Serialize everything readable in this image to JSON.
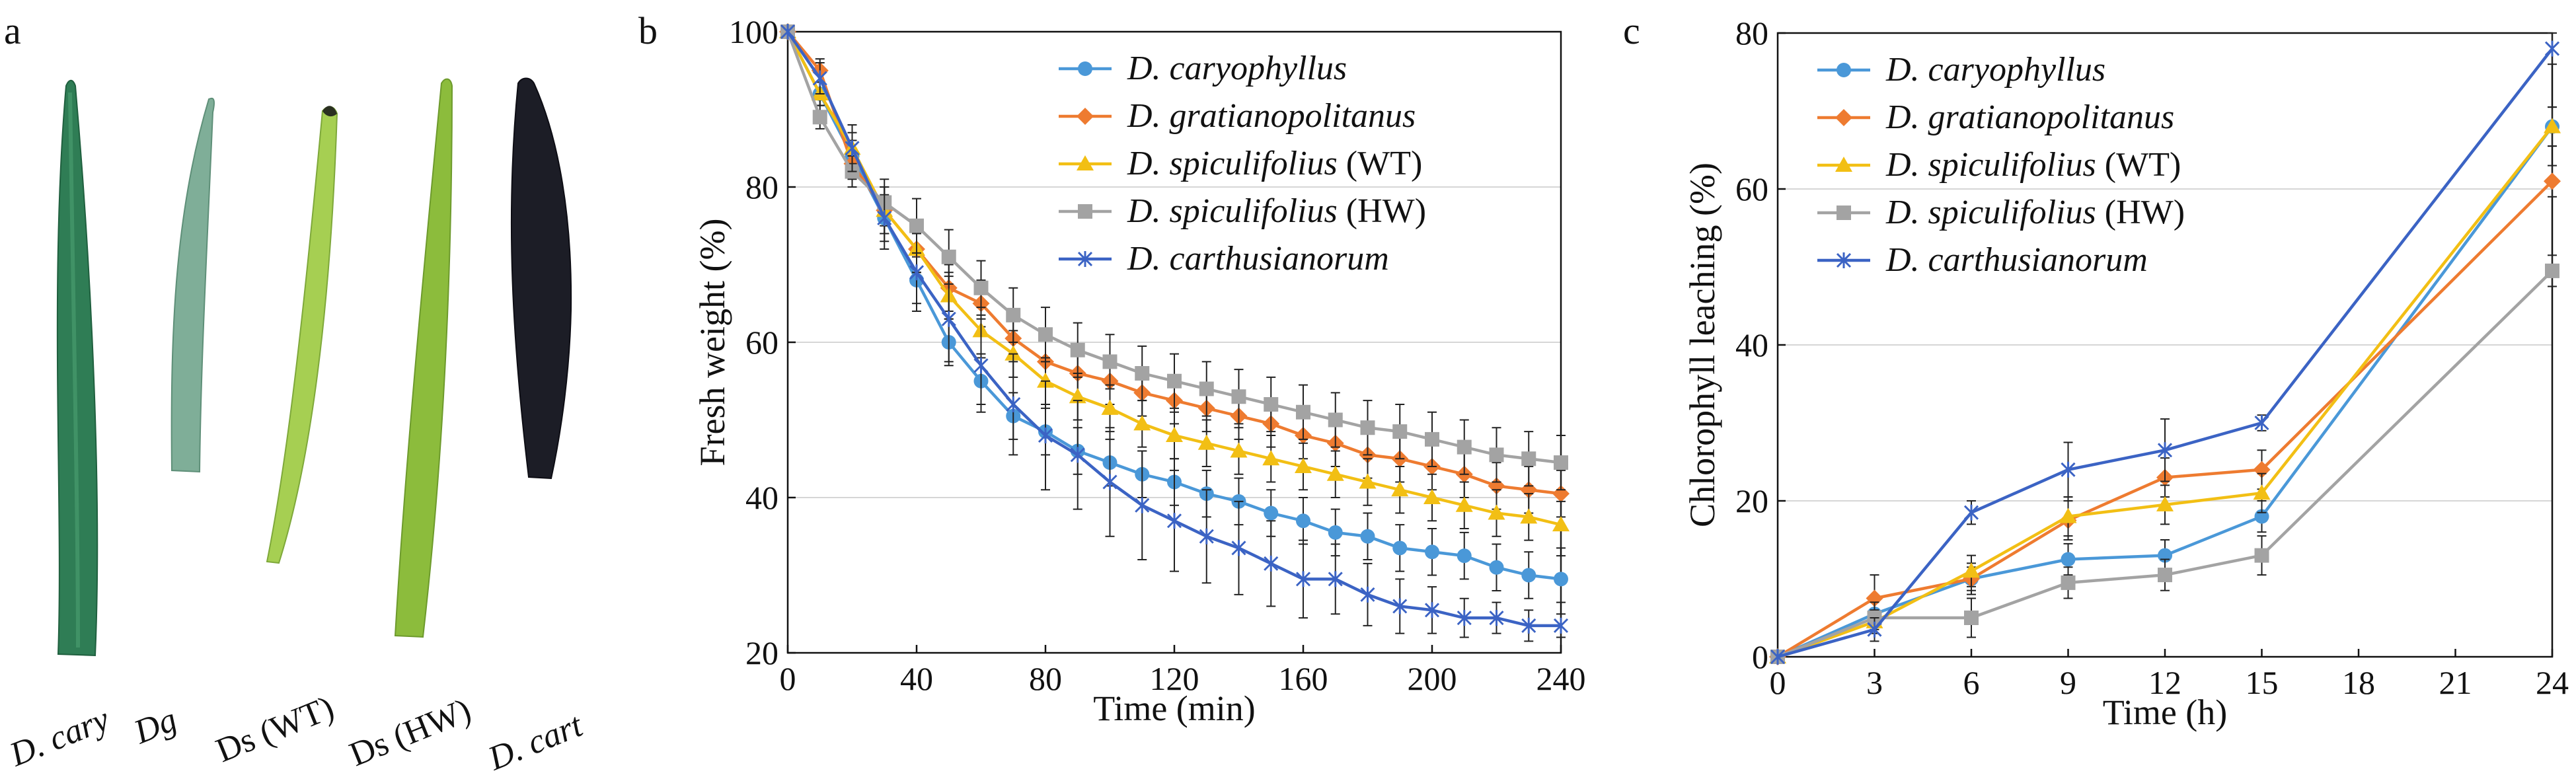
{
  "panel_labels": {
    "a": "a",
    "b": "b",
    "c": "c"
  },
  "leaves": [
    {
      "label": "D. cary",
      "color": "#2f7d55"
    },
    {
      "label": "Dg",
      "color": "#7fae98"
    },
    {
      "label": "Ds (WT)",
      "color": "#9cc84a"
    },
    {
      "label": "Ds (HW)",
      "color": "#8cbc3c"
    },
    {
      "label": "D. cart",
      "color": "#1c1d26"
    }
  ],
  "chart_data": [
    {
      "type": "line",
      "panel": "b",
      "xlabel": "Time (min)",
      "ylabel": "Fresh weight (%)",
      "xlim": [
        0,
        240
      ],
      "ylim": [
        20,
        100
      ],
      "xticks": [
        0,
        40,
        80,
        120,
        160,
        200,
        240
      ],
      "yticks": [
        20,
        40,
        60,
        80,
        100
      ],
      "grid": "horizontal",
      "legend": "top-right",
      "x": [
        0,
        10,
        20,
        30,
        40,
        50,
        60,
        70,
        80,
        90,
        100,
        110,
        120,
        130,
        140,
        150,
        160,
        170,
        180,
        190,
        200,
        210,
        220,
        230,
        240
      ],
      "series": [
        {
          "name": "D. caryophyllus",
          "italic": "D. caryophyllus",
          "suffix": "",
          "color": "#4a98d8",
          "marker": "circle",
          "values": [
            100,
            92,
            84,
            76,
            68,
            60,
            55,
            50.5,
            48.5,
            46,
            44.5,
            43,
            42,
            40.5,
            39.5,
            38,
            37,
            35.5,
            35,
            33.5,
            33,
            32.5,
            31,
            30,
            29.5
          ],
          "errors": [
            0,
            1.5,
            2,
            3,
            3,
            3,
            3,
            3,
            3,
            3,
            3,
            3,
            3,
            3,
            3,
            3,
            3,
            3,
            3,
            3,
            3,
            3,
            3,
            3,
            3
          ]
        },
        {
          "name": "D. gratianopolitanus",
          "italic": "D. gratianopolitanus",
          "suffix": "",
          "color": "#ee7b30",
          "marker": "diamond",
          "values": [
            100,
            95,
            83,
            77,
            72,
            67,
            65,
            60.5,
            57.5,
            56,
            55,
            53.5,
            52.5,
            51.5,
            50.5,
            49.5,
            48,
            47,
            45.5,
            45,
            44,
            43,
            41.5,
            41,
            40.5
          ],
          "errors": [
            0,
            1.5,
            2,
            3,
            3,
            3,
            3,
            3,
            3,
            3,
            3,
            3,
            3,
            3,
            3,
            3,
            3,
            3,
            3,
            3,
            3,
            3,
            3,
            3,
            3
          ]
        },
        {
          "name": "D. spiculifolius (WT)",
          "italic": "D. spiculifolius",
          "suffix": " (WT)",
          "color": "#f2bf14",
          "marker": "triangle",
          "values": [
            100,
            92,
            85,
            77,
            72,
            66,
            61.5,
            58.5,
            55,
            53,
            51.5,
            49.5,
            48,
            47,
            46,
            45,
            44,
            43,
            42,
            41,
            40,
            39,
            38,
            37.5,
            36.5
          ],
          "errors": [
            0,
            1.5,
            2,
            3,
            3,
            3,
            3,
            3,
            3,
            3,
            3,
            3,
            3,
            3,
            3,
            3,
            3,
            3,
            3,
            3,
            3,
            3,
            3,
            3,
            3
          ]
        },
        {
          "name": "D. spiculifolius (HW)",
          "italic": "D. spiculifolius",
          "suffix": " (HW)",
          "color": "#a3a3a3",
          "marker": "square",
          "values": [
            100,
            89,
            82,
            78,
            75,
            71,
            67,
            63.5,
            61,
            59,
            57.5,
            56,
            55,
            54,
            53,
            52,
            51,
            50,
            49,
            48.5,
            47.5,
            46.5,
            45.5,
            45,
            44.5
          ],
          "errors": [
            0,
            1.5,
            2,
            3,
            3.5,
            3.5,
            3.5,
            3.5,
            3.5,
            3.5,
            3.5,
            3.5,
            3.5,
            3.5,
            3.5,
            3.5,
            3.5,
            3.5,
            3.5,
            3.5,
            3.5,
            3.5,
            3.5,
            3.5,
            3.5
          ]
        },
        {
          "name": "D. carthusianorum",
          "italic": "D. carthusianorum",
          "suffix": "",
          "color": "#3b63c4",
          "marker": "asterisk",
          "values": [
            100,
            94,
            85,
            76,
            69,
            63,
            57,
            52,
            48,
            45.5,
            42,
            39,
            37,
            35,
            33.5,
            31.5,
            29.5,
            29.5,
            27.5,
            26,
            25.5,
            24.5,
            24.5,
            23.5,
            23.5
          ],
          "errors": [
            0,
            2,
            3,
            4,
            5,
            5.5,
            6,
            6.5,
            7,
            7,
            7,
            7,
            6.5,
            6,
            6,
            5.5,
            5,
            4.5,
            4,
            3.5,
            3,
            2.5,
            2,
            2,
            1.5
          ]
        }
      ]
    },
    {
      "type": "line",
      "panel": "c",
      "xlabel": "Time (h)",
      "ylabel": "Chlorophyll leaching (%)",
      "xlim": [
        0,
        24
      ],
      "ylim": [
        0,
        80
      ],
      "xticks": [
        0,
        3,
        6,
        9,
        12,
        15,
        18,
        21,
        24
      ],
      "yticks": [
        0,
        20,
        40,
        60,
        80
      ],
      "grid": "horizontal",
      "legend": "top-left",
      "x": [
        0,
        3,
        6,
        9,
        12,
        15,
        24
      ],
      "series": [
        {
          "name": "D. caryophyllus",
          "italic": "D. caryophyllus",
          "suffix": "",
          "color": "#4a98d8",
          "marker": "circle",
          "values": [
            0,
            5.5,
            10,
            12.5,
            13,
            18,
            68
          ],
          "errors": [
            0,
            2,
            1.5,
            2,
            2,
            2,
            2.5
          ]
        },
        {
          "name": "D. gratianopolitanus",
          "italic": "D. gratianopolitanus",
          "suffix": "",
          "color": "#ee7b30",
          "marker": "diamond",
          "values": [
            0,
            7.5,
            10,
            17.5,
            23,
            24,
            61
          ],
          "errors": [
            0,
            3,
            2,
            2.5,
            2.5,
            2.5,
            2
          ]
        },
        {
          "name": "D. spiculifolius (WT)",
          "italic": "D. spiculifolius",
          "suffix": " (WT)",
          "color": "#f2bf14",
          "marker": "triangle",
          "values": [
            0,
            4.5,
            11,
            18,
            19.5,
            21,
            68
          ],
          "errors": [
            0,
            1.5,
            2,
            2.5,
            2.5,
            2.5,
            2.5
          ]
        },
        {
          "name": "D. spiculifolius (HW)",
          "italic": "D. spiculifolius",
          "suffix": " (HW)",
          "color": "#a3a3a3",
          "marker": "square",
          "values": [
            0,
            5,
            5,
            9.5,
            10.5,
            13,
            49.5
          ],
          "errors": [
            0,
            2,
            2.5,
            2,
            2,
            2.5,
            2
          ]
        },
        {
          "name": "D. carthusianorum",
          "italic": "D. carthusianorum",
          "suffix": "",
          "color": "#3b63c4",
          "marker": "asterisk",
          "values": [
            0,
            3.5,
            18.5,
            24,
            26.5,
            30,
            78
          ],
          "errors": [
            0,
            1.5,
            1.5,
            3.5,
            4,
            1,
            2
          ]
        }
      ]
    }
  ]
}
